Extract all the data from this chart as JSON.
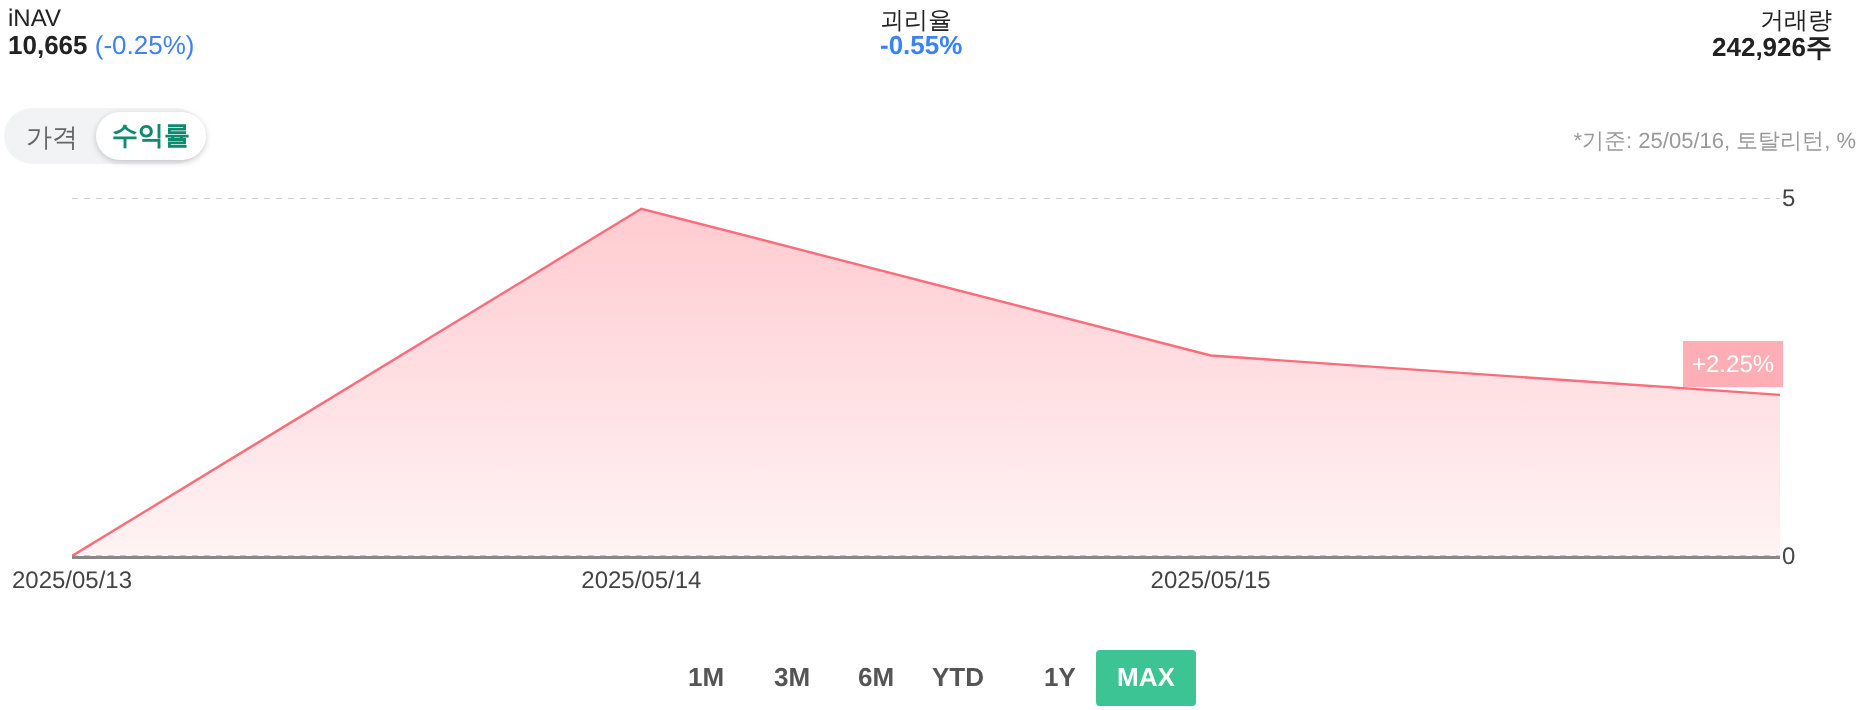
{
  "chart_data": {
    "type": "area",
    "annotations": [
      "iNAV",
      "10,665",
      "(-0.25%)",
      "괴리율",
      "-0.55%",
      "거래량",
      "242,926주",
      "가격",
      "수익률",
      "*기준: 25/05/16, 토탈리턴, %",
      "1M",
      "3M",
      "6M",
      "YTD",
      "1Y",
      "MAX"
    ],
    "categories": [
      "2025/05/13",
      "2025/05/14",
      "2025/05/15",
      null
    ],
    "series": [
      {
        "color": "#ff6b7a",
        "values": [
          0,
          4.85,
          2.8,
          2.25
        ],
        "value_labels": [
          null,
          null,
          null,
          "+2.25%"
        ]
      }
    ],
    "ylim": [
      0,
      5
    ],
    "yticks": [
      0,
      5
    ],
    "grid": "y",
    "marker": "none",
    "line_style": "solid"
  }
}
